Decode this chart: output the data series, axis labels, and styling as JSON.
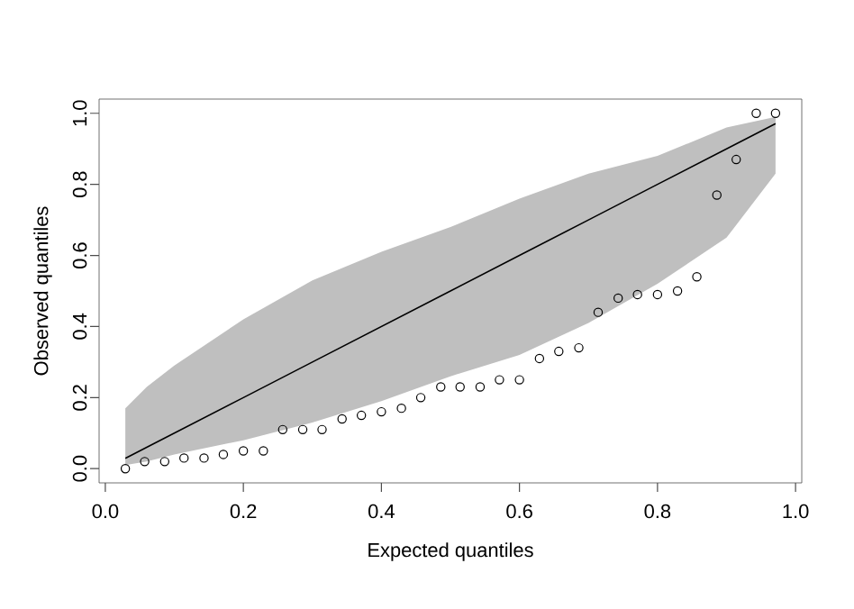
{
  "chart_data": {
    "type": "scatter",
    "xlabel": "Expected quantiles",
    "ylabel": "Observed quantiles",
    "xlim": [
      -0.009,
      1.009
    ],
    "ylim": [
      -0.04,
      1.04
    ],
    "xticks": [
      {
        "value": 0,
        "label": "0.0"
      },
      0.2,
      0.4,
      0.6,
      0.8,
      {
        "value": 1,
        "label": "1.0"
      }
    ],
    "yticks": [
      {
        "value": 0,
        "label": "0.0"
      },
      0.2,
      0.4,
      0.6,
      0.8,
      {
        "value": 1,
        "label": "1.0"
      }
    ],
    "grid": false,
    "series": [
      {
        "type": "line",
        "color": "#000000",
        "x": [
          0.029,
          0.06,
          0.1,
          0.2,
          0.3,
          0.4,
          0.5,
          0.6,
          0.7,
          0.8,
          0.9,
          0.971
        ],
        "values": [
          0.029,
          0.06,
          0.1,
          0.2,
          0.3,
          0.4,
          0.5,
          0.6,
          0.7,
          0.8,
          0.9,
          0.971
        ],
        "lower": [
          0.01,
          0.02,
          0.04,
          0.08,
          0.13,
          0.19,
          0.26,
          0.32,
          0.41,
          0.52,
          0.65,
          0.83
        ],
        "upper": [
          0.17,
          0.23,
          0.29,
          0.42,
          0.53,
          0.61,
          0.68,
          0.76,
          0.83,
          0.88,
          0.96,
          0.99
        ]
      },
      {
        "color": "#000000",
        "marker": "circle",
        "x": [
          0.029,
          0.057,
          0.086,
          0.114,
          0.143,
          0.171,
          0.2,
          0.229,
          0.257,
          0.286,
          0.314,
          0.343,
          0.371,
          0.4,
          0.429,
          0.457,
          0.486,
          0.514,
          0.543,
          0.571,
          0.6,
          0.629,
          0.657,
          0.686,
          0.714,
          0.743,
          0.771,
          0.8,
          0.829,
          0.857,
          0.886,
          0.914,
          0.943,
          0.971
        ],
        "values": [
          0.0,
          0.02,
          0.02,
          0.03,
          0.03,
          0.04,
          0.05,
          0.05,
          0.11,
          0.11,
          0.11,
          0.14,
          0.15,
          0.16,
          0.17,
          0.2,
          0.23,
          0.23,
          0.23,
          0.25,
          0.25,
          0.31,
          0.33,
          0.34,
          0.44,
          0.48,
          0.49,
          0.49,
          0.5,
          0.54,
          0.77,
          0.87,
          1.0,
          1.0
        ]
      }
    ]
  }
}
